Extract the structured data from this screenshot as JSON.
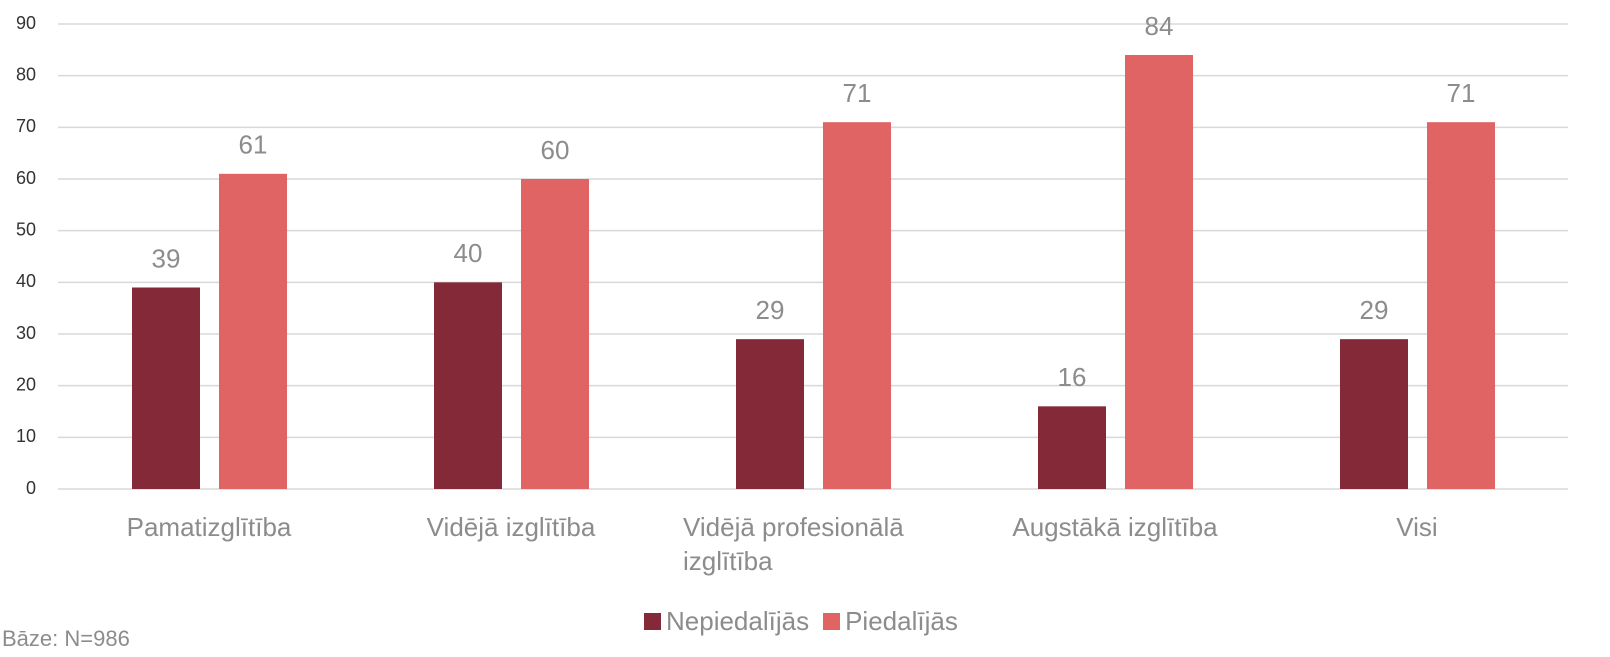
{
  "chart_data": {
    "type": "bar",
    "categories": [
      "Pamatizglītība",
      "Vidējā izglītība",
      "Vidējā profesionālā izglītība",
      "Augstākā izglītība",
      "Visi"
    ],
    "series": [
      {
        "name": "Nepiedalījās",
        "color": "#832937",
        "values": [
          39,
          40,
          29,
          16,
          29
        ]
      },
      {
        "name": "Piedalījās",
        "color": "#e06464",
        "values": [
          61,
          60,
          71,
          84,
          71
        ]
      }
    ],
    "ylim": [
      0,
      90
    ],
    "yticks": [
      0,
      10,
      20,
      30,
      40,
      50,
      60,
      70,
      80,
      90
    ],
    "grid": true,
    "legend": "bottom",
    "annotation": "Bāze: N=986"
  }
}
